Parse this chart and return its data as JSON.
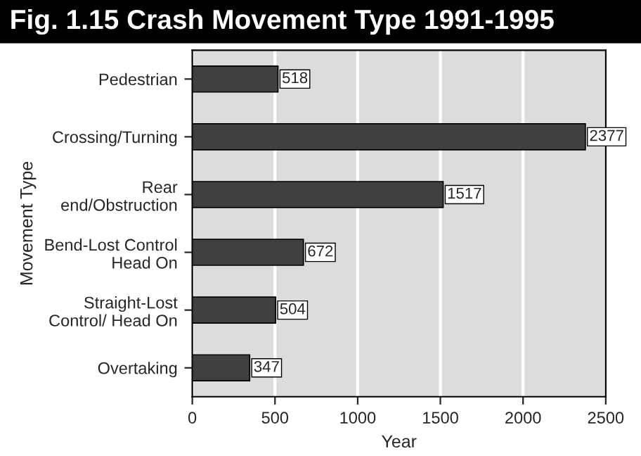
{
  "chart_data": {
    "type": "bar",
    "orientation": "horizontal",
    "title": "Fig. 1.15 Crash Movement Type 1991-1995",
    "xlabel": "Year",
    "ylabel": "Movement Type",
    "categories": [
      "Pedestrian",
      "Crossing/Turning",
      "Rear\nend/Obstruction",
      "Bend-Lost Control\nHead On",
      "Straight-Lost\nControl/ Head On",
      "Overtaking"
    ],
    "values": [
      518,
      2377,
      1517,
      672,
      504,
      347
    ],
    "color": "#404040",
    "xlim": [
      0,
      2500
    ],
    "xticks": [
      0,
      500,
      1000,
      1500,
      2000,
      2500
    ],
    "grid": "x",
    "data_labels": true
  }
}
